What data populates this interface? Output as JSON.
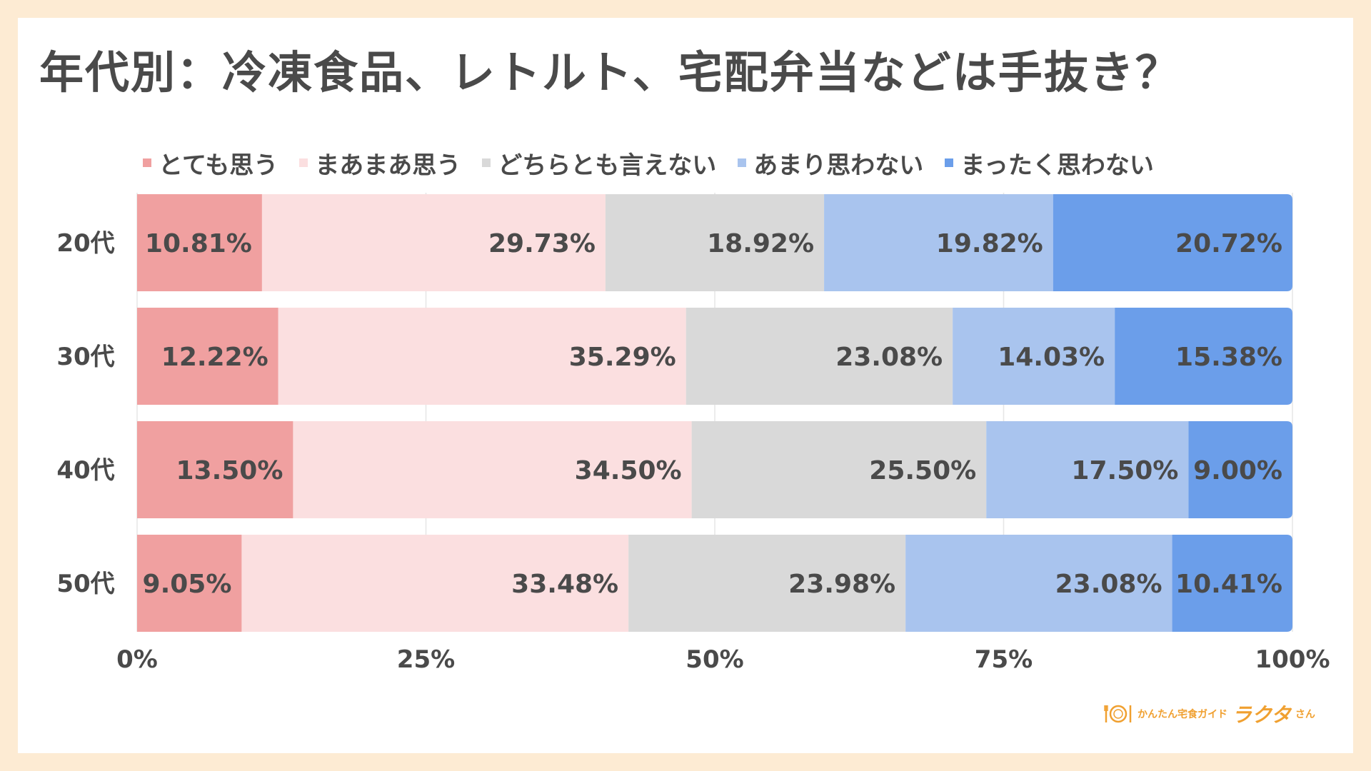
{
  "chart_data": {
    "type": "bar",
    "orientation": "horizontal",
    "stacked": "percent",
    "title": "年代別：冷凍食品、レトルト、宅配弁当などは手抜き？",
    "categories": [
      "20代",
      "30代",
      "40代",
      "50代"
    ],
    "series": [
      {
        "name": "とても思う",
        "color": "#F0A0A0",
        "values": [
          10.81,
          12.22,
          13.5,
          9.05
        ],
        "labels": [
          "10.81%",
          "12.22%",
          "13.50%",
          "9.05%"
        ]
      },
      {
        "name": "まあまあ思う",
        "color": "#FBDFE0",
        "values": [
          29.73,
          35.29,
          34.5,
          33.48
        ],
        "labels": [
          "29.73%",
          "35.29%",
          "34.50%",
          "33.48%"
        ]
      },
      {
        "name": "どちらとも言えない",
        "color": "#D9D9D9",
        "values": [
          18.92,
          23.08,
          25.5,
          23.98
        ],
        "labels": [
          "18.92%",
          "23.08%",
          "25.50%",
          "23.98%"
        ]
      },
      {
        "name": "あまり思わない",
        "color": "#A9C4EE",
        "values": [
          19.82,
          14.03,
          17.5,
          23.08
        ],
        "labels": [
          "19.82%",
          "14.03%",
          "17.50%",
          "23.08%"
        ]
      },
      {
        "name": "まったく思わない",
        "color": "#6B9EEA",
        "values": [
          20.72,
          15.38,
          9.0,
          10.41
        ],
        "labels": [
          "20.72%",
          "15.38%",
          "9.00%",
          "10.41%"
        ]
      }
    ],
    "x_ticks": [
      "0%",
      "25%",
      "50%",
      "75%",
      "100%"
    ],
    "xlim": [
      0,
      100
    ],
    "legend_position": "top",
    "grid": "vertical"
  },
  "logo": {
    "sub": "かんたん宅食ガイド",
    "main": "ラクタ",
    "san": "さん"
  }
}
